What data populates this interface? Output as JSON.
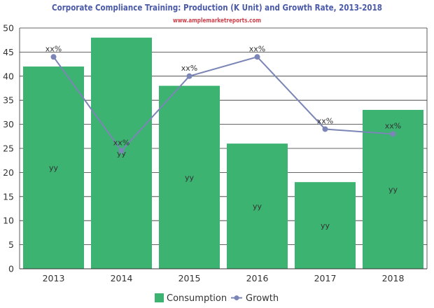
{
  "chart_data": {
    "type": "bar",
    "title": "Corporate Compliance Training: Production (K Unit) and Growth Rate, 2013-2018",
    "subtitle": "www.amplemarketreports.com",
    "categories": [
      "2013",
      "2014",
      "2015",
      "2016",
      "2017",
      "2018"
    ],
    "ylim": [
      0,
      50
    ],
    "yticks": [
      0,
      5,
      10,
      15,
      20,
      25,
      30,
      35,
      40,
      45,
      50
    ],
    "grid": true,
    "legend_position": "bottom",
    "series": [
      {
        "name": "Consumption",
        "type": "bar",
        "color": "#3cb371",
        "values": [
          42,
          48,
          38,
          26,
          18,
          33
        ],
        "labels": [
          "yy",
          "yy",
          "yy",
          "yy",
          "yy",
          "yy"
        ]
      },
      {
        "name": "Growth",
        "type": "line",
        "color": "#7b86b6",
        "values": [
          44,
          24.5,
          40,
          44,
          29,
          28
        ],
        "labels": [
          "xx%",
          "xx%",
          "xx%",
          "xx%",
          "xx%",
          "xx%"
        ]
      }
    ],
    "colors": {
      "title": "#4a5aa8",
      "subtitle": "#d0404a",
      "axis_text": "#333333",
      "grid": "#333333",
      "bar_label": "#333333",
      "line_label": "#333333"
    }
  }
}
